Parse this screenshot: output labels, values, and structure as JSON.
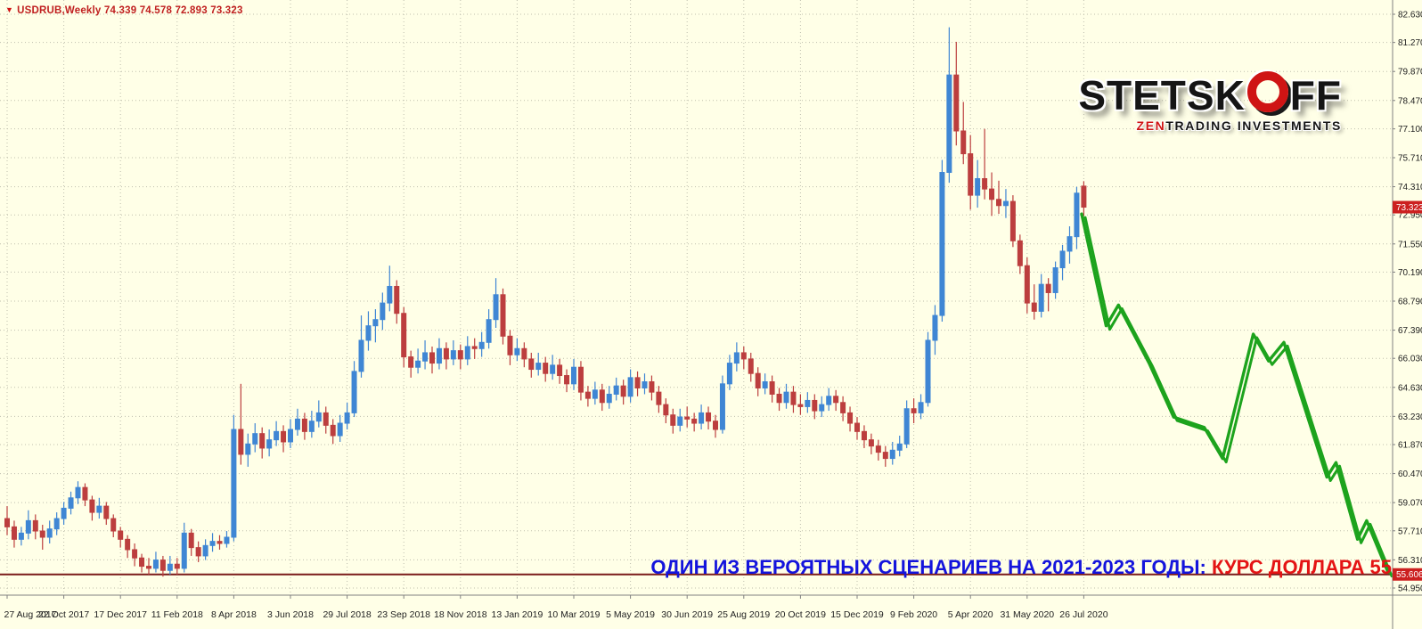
{
  "symbol_bar": {
    "icon": "▼",
    "text": "USDRUB,Weekly 74.339 74.578 72.893 73.323"
  },
  "logo": {
    "part1": "STETSK",
    "part2": "FF",
    "sub_red": "ZEN",
    "sub_black": "TRADING INVESTMENTS"
  },
  "caption": {
    "blue": "ОДИН ИЗ ВЕРОЯТНЫХ СЦЕНАРИЕВ НА 2021-2023 ГОДЫ: ",
    "red": "КУРС ДОЛЛАРА 55"
  },
  "chart_data": {
    "type": "candlestick",
    "symbol": "USDRUB",
    "timeframe": "Weekly",
    "title": "USDRUB,Weekly 74.339 74.578 72.893 73.323",
    "last_candle": {
      "open": 74.339,
      "high": 74.578,
      "low": 72.893,
      "close": 73.323
    },
    "price_axis": {
      "ylim": [
        54.95,
        82.63
      ],
      "labels": [
        82.63,
        81.27,
        79.87,
        78.47,
        77.1,
        75.71,
        74.31,
        72.95,
        71.55,
        70.19,
        68.79,
        67.39,
        66.03,
        64.63,
        63.23,
        61.87,
        60.47,
        59.07,
        57.71,
        56.31,
        54.95
      ],
      "current_price": 73.323,
      "support_level": 55.606
    },
    "time_axis": {
      "labels": [
        "27 Aug 2017",
        "22 Oct 2017",
        "17 Dec 2017",
        "11 Feb 2018",
        "8 Apr 2018",
        "3 Jun 2018",
        "29 Jul 2018",
        "23 Sep 2018",
        "18 Nov 2018",
        "13 Jan 2019",
        "10 Mar 2019",
        "5 May 2019",
        "30 Jun 2019",
        "25 Aug 2019",
        "20 Oct 2019",
        "15 Dec 2019",
        "9 Feb 2020",
        "5 Apr 2020",
        "31 May 2020",
        "26 Jul 2020"
      ],
      "weeks_per_label": 8
    },
    "grid": true,
    "candles": [
      [
        58.3,
        58.9,
        57.5,
        57.9
      ],
      [
        57.9,
        58.2,
        56.9,
        57.3
      ],
      [
        57.3,
        57.9,
        57.0,
        57.6
      ],
      [
        57.6,
        58.7,
        57.3,
        58.2
      ],
      [
        58.2,
        58.5,
        57.3,
        57.7
      ],
      [
        57.7,
        58.0,
        56.8,
        57.4
      ],
      [
        57.4,
        58.2,
        57.1,
        57.8
      ],
      [
        57.8,
        58.6,
        57.5,
        58.3
      ],
      [
        58.3,
        59.1,
        58.0,
        58.8
      ],
      [
        58.8,
        59.6,
        58.5,
        59.3
      ],
      [
        59.3,
        60.1,
        59.0,
        59.8
      ],
      [
        59.8,
        60.0,
        58.9,
        59.2
      ],
      [
        59.2,
        59.4,
        58.2,
        58.6
      ],
      [
        58.6,
        59.3,
        58.3,
        58.9
      ],
      [
        58.9,
        59.1,
        58.0,
        58.3
      ],
      [
        58.3,
        58.5,
        57.4,
        57.7
      ],
      [
        57.7,
        57.9,
        56.9,
        57.3
      ],
      [
        57.3,
        57.5,
        56.4,
        56.8
      ],
      [
        56.8,
        57.1,
        56.0,
        56.4
      ],
      [
        56.4,
        56.6,
        55.7,
        56.0
      ],
      [
        56.0,
        56.4,
        55.6,
        55.9
      ],
      [
        55.9,
        56.7,
        55.7,
        56.3
      ],
      [
        56.3,
        56.5,
        55.5,
        55.8
      ],
      [
        55.8,
        56.5,
        55.6,
        56.1
      ],
      [
        56.1,
        56.4,
        55.6,
        55.9
      ],
      [
        55.9,
        58.1,
        55.7,
        57.6
      ],
      [
        57.6,
        57.8,
        56.5,
        56.9
      ],
      [
        56.9,
        57.2,
        56.2,
        56.5
      ],
      [
        56.5,
        57.3,
        56.3,
        57.0
      ],
      [
        57.0,
        57.6,
        56.7,
        57.2
      ],
      [
        57.2,
        57.5,
        56.8,
        57.1
      ],
      [
        57.1,
        57.7,
        56.9,
        57.4
      ],
      [
        57.4,
        63.3,
        57.2,
        62.6
      ],
      [
        62.6,
        64.8,
        60.9,
        61.4
      ],
      [
        61.4,
        62.4,
        60.8,
        61.9
      ],
      [
        61.9,
        62.9,
        61.5,
        62.4
      ],
      [
        62.4,
        62.7,
        61.2,
        61.7
      ],
      [
        61.7,
        62.6,
        61.3,
        62.1
      ],
      [
        62.1,
        63.0,
        61.8,
        62.5
      ],
      [
        62.5,
        62.8,
        61.5,
        62.0
      ],
      [
        62.0,
        63.1,
        61.7,
        62.6
      ],
      [
        62.6,
        63.6,
        62.3,
        63.1
      ],
      [
        63.1,
        63.4,
        62.1,
        62.5
      ],
      [
        62.5,
        63.5,
        62.2,
        63.0
      ],
      [
        63.0,
        64.0,
        62.7,
        63.4
      ],
      [
        63.4,
        63.7,
        62.4,
        62.8
      ],
      [
        62.8,
        63.1,
        61.9,
        62.3
      ],
      [
        62.3,
        63.3,
        62.0,
        62.9
      ],
      [
        62.9,
        63.9,
        62.6,
        63.4
      ],
      [
        63.4,
        65.9,
        63.2,
        65.4
      ],
      [
        65.4,
        68.1,
        65.1,
        66.9
      ],
      [
        66.9,
        68.3,
        66.4,
        67.6
      ],
      [
        67.6,
        68.4,
        66.8,
        67.9
      ],
      [
        67.9,
        69.2,
        67.4,
        68.7
      ],
      [
        68.7,
        70.5,
        68.3,
        69.5
      ],
      [
        69.5,
        69.8,
        67.7,
        68.2
      ],
      [
        68.2,
        68.5,
        65.6,
        66.1
      ],
      [
        66.1,
        66.4,
        65.1,
        65.6
      ],
      [
        65.6,
        66.5,
        65.3,
        65.9
      ],
      [
        65.9,
        66.9,
        65.5,
        66.3
      ],
      [
        66.3,
        66.6,
        65.3,
        65.8
      ],
      [
        65.8,
        67.0,
        65.5,
        66.5
      ],
      [
        66.5,
        66.8,
        65.5,
        66.0
      ],
      [
        66.0,
        66.9,
        65.7,
        66.4
      ],
      [
        66.4,
        66.7,
        65.5,
        66.0
      ],
      [
        66.0,
        67.1,
        65.7,
        66.6
      ],
      [
        66.6,
        67.0,
        66.0,
        66.5
      ],
      [
        66.5,
        67.3,
        66.1,
        66.8
      ],
      [
        66.8,
        68.4,
        66.5,
        67.9
      ],
      [
        67.9,
        69.9,
        67.5,
        69.1
      ],
      [
        69.1,
        69.4,
        66.7,
        67.1
      ],
      [
        67.1,
        67.4,
        65.7,
        66.2
      ],
      [
        66.2,
        67.0,
        65.9,
        66.5
      ],
      [
        66.5,
        66.8,
        65.6,
        66.0
      ],
      [
        66.0,
        66.3,
        65.1,
        65.5
      ],
      [
        65.5,
        66.3,
        65.2,
        65.8
      ],
      [
        65.8,
        66.1,
        64.9,
        65.3
      ],
      [
        65.3,
        66.2,
        65.0,
        65.7
      ],
      [
        65.7,
        66.0,
        64.8,
        65.2
      ],
      [
        65.2,
        65.5,
        64.4,
        64.8
      ],
      [
        64.8,
        66.0,
        64.5,
        65.6
      ],
      [
        65.6,
        65.9,
        64.0,
        64.4
      ],
      [
        64.4,
        64.7,
        63.7,
        64.1
      ],
      [
        64.1,
        64.9,
        63.8,
        64.5
      ],
      [
        64.5,
        64.8,
        63.5,
        63.9
      ],
      [
        63.9,
        64.7,
        63.6,
        64.3
      ],
      [
        64.3,
        65.1,
        64.0,
        64.7
      ],
      [
        64.7,
        65.0,
        63.8,
        64.2
      ],
      [
        64.2,
        65.5,
        63.9,
        65.1
      ],
      [
        65.1,
        65.4,
        64.2,
        64.6
      ],
      [
        64.6,
        65.3,
        64.3,
        64.9
      ],
      [
        64.9,
        65.2,
        64.0,
        64.4
      ],
      [
        64.4,
        64.7,
        63.4,
        63.8
      ],
      [
        63.8,
        64.1,
        62.9,
        63.3
      ],
      [
        63.3,
        63.6,
        62.4,
        62.8
      ],
      [
        62.8,
        63.6,
        62.5,
        63.2
      ],
      [
        63.2,
        63.7,
        62.7,
        63.1
      ],
      [
        63.1,
        63.4,
        62.5,
        62.9
      ],
      [
        62.9,
        63.8,
        62.6,
        63.4
      ],
      [
        63.4,
        63.7,
        62.6,
        63.0
      ],
      [
        63.0,
        63.3,
        62.2,
        62.6
      ],
      [
        62.6,
        65.2,
        62.4,
        64.8
      ],
      [
        64.8,
        66.2,
        64.5,
        65.8
      ],
      [
        65.8,
        66.8,
        65.4,
        66.3
      ],
      [
        66.3,
        66.6,
        65.5,
        66.0
      ],
      [
        66.0,
        66.3,
        64.9,
        65.3
      ],
      [
        65.3,
        65.6,
        64.2,
        64.6
      ],
      [
        64.6,
        65.3,
        64.3,
        64.9
      ],
      [
        64.9,
        65.2,
        63.9,
        64.3
      ],
      [
        64.3,
        64.6,
        63.5,
        63.9
      ],
      [
        63.9,
        64.8,
        63.6,
        64.4
      ],
      [
        64.4,
        64.7,
        63.4,
        63.8
      ],
      [
        63.8,
        64.3,
        63.3,
        63.7
      ],
      [
        63.7,
        64.4,
        63.4,
        64.0
      ],
      [
        64.0,
        64.3,
        63.1,
        63.5
      ],
      [
        63.5,
        64.2,
        63.2,
        63.8
      ],
      [
        63.8,
        64.6,
        63.5,
        64.2
      ],
      [
        64.2,
        64.5,
        63.5,
        63.9
      ],
      [
        63.9,
        64.2,
        63.0,
        63.4
      ],
      [
        63.4,
        63.7,
        62.5,
        62.9
      ],
      [
        62.9,
        63.2,
        62.1,
        62.5
      ],
      [
        62.5,
        62.8,
        61.7,
        62.1
      ],
      [
        62.1,
        62.4,
        61.4,
        61.8
      ],
      [
        61.8,
        62.1,
        61.1,
        61.5
      ],
      [
        61.5,
        61.8,
        60.8,
        61.2
      ],
      [
        61.2,
        62.0,
        60.9,
        61.6
      ],
      [
        61.6,
        62.3,
        61.3,
        61.9
      ],
      [
        61.9,
        64.0,
        61.7,
        63.6
      ],
      [
        63.6,
        64.1,
        62.9,
        63.4
      ],
      [
        63.4,
        64.3,
        63.1,
        63.9
      ],
      [
        63.9,
        67.3,
        63.7,
        66.9
      ],
      [
        66.9,
        68.6,
        66.2,
        68.1
      ],
      [
        68.1,
        75.6,
        67.8,
        75.0
      ],
      [
        75.0,
        82.0,
        74.5,
        79.7
      ],
      [
        79.7,
        81.3,
        76.3,
        77.0
      ],
      [
        77.0,
        78.4,
        75.4,
        75.9
      ],
      [
        75.9,
        76.8,
        73.2,
        73.9
      ],
      [
        73.9,
        75.6,
        73.3,
        74.7
      ],
      [
        74.7,
        77.1,
        73.7,
        74.2
      ],
      [
        74.2,
        75.0,
        72.9,
        73.7
      ],
      [
        73.7,
        74.6,
        73.0,
        73.4
      ],
      [
        73.4,
        74.2,
        72.8,
        73.6
      ],
      [
        73.6,
        73.9,
        71.4,
        71.7
      ],
      [
        71.7,
        72.0,
        70.1,
        70.5
      ],
      [
        70.5,
        70.9,
        68.2,
        68.7
      ],
      [
        68.7,
        69.6,
        67.9,
        68.3
      ],
      [
        68.3,
        70.1,
        68.0,
        69.6
      ],
      [
        69.6,
        69.9,
        68.3,
        69.2
      ],
      [
        69.2,
        70.7,
        68.9,
        70.4
      ],
      [
        70.4,
        71.5,
        69.8,
        71.2
      ],
      [
        71.2,
        72.4,
        70.6,
        71.9
      ],
      [
        71.9,
        74.3,
        71.3,
        74.0
      ],
      [
        74.339,
        74.578,
        72.893,
        73.323
      ]
    ],
    "projection": {
      "description": "hand-drawn green forecast line 2021-2023 toward 55",
      "points": [
        [
          0.0,
          73.0
        ],
        [
          0.08,
          67.6
        ],
        [
          0.12,
          68.6
        ],
        [
          0.22,
          65.8
        ],
        [
          0.3,
          63.2
        ],
        [
          0.4,
          62.7
        ],
        [
          0.46,
          61.2
        ],
        [
          0.56,
          67.2
        ],
        [
          0.61,
          65.9
        ],
        [
          0.66,
          66.8
        ],
        [
          0.8,
          60.3
        ],
        [
          0.83,
          61.0
        ],
        [
          0.9,
          57.3
        ],
        [
          0.93,
          58.2
        ],
        [
          1.0,
          55.7
        ]
      ]
    },
    "colors": {
      "background": "#ffffe7",
      "grid": "#bfbfae",
      "bull": "#3f86d4",
      "bear": "#bc3e3e",
      "axis_text": "#222222",
      "badge": "#cc2020",
      "support_line": "#7a1a1a",
      "projection": "#1da31d"
    }
  }
}
